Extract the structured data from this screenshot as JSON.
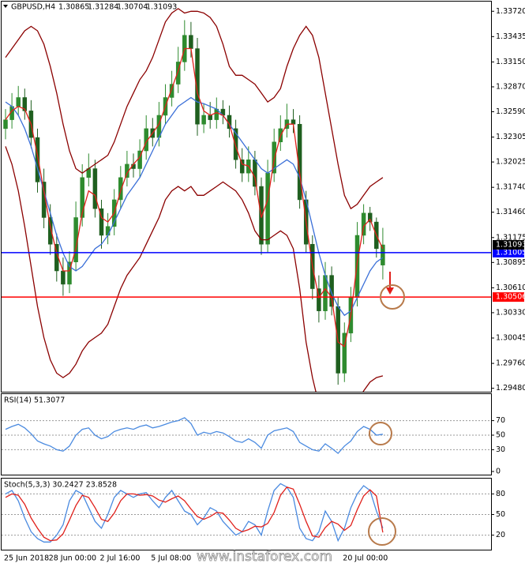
{
  "chart_data": [
    {
      "type": "candlestick",
      "title": "GBPUSD,H4",
      "header_values": [
        1.30865,
        1.31284,
        1.30704,
        1.31093
      ],
      "categories": [
        "25 Jun 2018",
        null,
        null,
        null,
        null,
        null,
        null,
        "28 Jun 00:00",
        null,
        null,
        null,
        null,
        null,
        null,
        null,
        "2 Jul 16:00",
        null,
        null,
        null,
        null,
        null,
        null,
        null,
        "5 Jul 08:00",
        null,
        null,
        null,
        null,
        null,
        null,
        null,
        null,
        null,
        null,
        null,
        null,
        null,
        null,
        null,
        null,
        null,
        null,
        null,
        null,
        null,
        null,
        null,
        null,
        null,
        null,
        null,
        null,
        null,
        "20 Jul 00:00",
        null,
        null,
        null,
        null,
        null,
        null
      ],
      "open": [
        1.324,
        1.325,
        1.3265,
        1.3275,
        1.326,
        1.323,
        1.318,
        1.314,
        1.311,
        1.308,
        1.3065,
        1.309,
        1.314,
        1.3185,
        1.3195,
        1.315,
        1.312,
        1.313,
        1.316,
        1.3185,
        1.32,
        1.3195,
        1.3215,
        1.324,
        1.323,
        1.3255,
        1.3275,
        1.329,
        1.3315,
        1.3345,
        1.333,
        1.3245,
        1.3255,
        1.325,
        1.3262,
        1.3255,
        1.324,
        1.3205,
        1.319,
        1.3205,
        1.3175,
        1.311,
        1.319,
        1.3225,
        1.324,
        1.325,
        1.3245,
        1.316,
        1.311,
        1.306,
        1.3035,
        1.3075,
        1.304,
        1.2965,
        1.301,
        1.305,
        1.312,
        1.3145,
        1.3135,
        1.30865
      ],
      "high": [
        1.3262,
        1.328,
        1.3288,
        1.3285,
        1.3272,
        1.324,
        1.3195,
        1.3155,
        1.3122,
        1.3095,
        1.3102,
        1.3158,
        1.32,
        1.3212,
        1.3205,
        1.316,
        1.3145,
        1.3172,
        1.3198,
        1.3215,
        1.3212,
        1.3228,
        1.3255,
        1.3252,
        1.327,
        1.329,
        1.3305,
        1.3332,
        1.3362,
        1.336,
        1.3342,
        1.3268,
        1.327,
        1.3275,
        1.3272,
        1.3266,
        1.325,
        1.3218,
        1.322,
        1.3215,
        1.3185,
        1.3205,
        1.324,
        1.3255,
        1.3268,
        1.3262,
        1.3255,
        1.317,
        1.312,
        1.3075,
        1.309,
        1.3085,
        1.305,
        1.3022,
        1.3062,
        1.3135,
        1.3155,
        1.3152,
        1.314,
        1.31284
      ],
      "low": [
        1.3228,
        1.324,
        1.3255,
        1.325,
        1.3218,
        1.3168,
        1.3128,
        1.3098,
        1.3068,
        1.3052,
        1.3055,
        1.308,
        1.313,
        1.3175,
        1.314,
        1.3105,
        1.311,
        1.312,
        1.315,
        1.3175,
        1.3185,
        1.3185,
        1.3205,
        1.322,
        1.322,
        1.3245,
        1.3265,
        1.328,
        1.3305,
        1.332,
        1.3232,
        1.3235,
        1.324,
        1.324,
        1.3245,
        1.323,
        1.3195,
        1.318,
        1.318,
        1.3165,
        1.3098,
        1.31,
        1.318,
        1.3215,
        1.323,
        1.3235,
        1.315,
        1.31,
        1.3048,
        1.3022,
        1.3025,
        1.303,
        1.2952,
        1.2955,
        1.3,
        1.304,
        1.311,
        1.3125,
        1.3095,
        1.30704
      ],
      "close": [
        1.325,
        1.3265,
        1.3275,
        1.326,
        1.323,
        1.318,
        1.314,
        1.311,
        1.308,
        1.3065,
        1.309,
        1.314,
        1.3185,
        1.3195,
        1.315,
        1.312,
        1.313,
        1.316,
        1.3185,
        1.32,
        1.3195,
        1.3215,
        1.324,
        1.323,
        1.3255,
        1.3275,
        1.329,
        1.3315,
        1.3345,
        1.333,
        1.3245,
        1.3255,
        1.325,
        1.3262,
        1.3255,
        1.324,
        1.3205,
        1.319,
        1.3205,
        1.3175,
        1.311,
        1.319,
        1.3225,
        1.324,
        1.325,
        1.3245,
        1.316,
        1.311,
        1.306,
        1.3035,
        1.3075,
        1.304,
        1.2965,
        1.301,
        1.305,
        1.312,
        1.3145,
        1.3135,
        1.3105,
        1.31093
      ],
      "up_color": "#2e8b2e",
      "down_color": "#1f5f1f",
      "overlays": [
        {
          "color": "#8b0000",
          "values": [
            1.332,
            1.333,
            1.334,
            1.335,
            1.3355,
            1.335,
            1.3335,
            1.331,
            1.328,
            1.3245,
            1.3215,
            1.3195,
            1.319,
            1.3195,
            1.32,
            1.3205,
            1.321,
            1.3225,
            1.3245,
            1.3265,
            1.328,
            1.3295,
            1.3305,
            1.332,
            1.334,
            1.336,
            1.337,
            1.3375,
            1.337,
            1.3372,
            1.3372,
            1.337,
            1.3365,
            1.3355,
            1.3335,
            1.331,
            1.33,
            1.33,
            1.3295,
            1.329,
            1.328,
            1.327,
            1.3275,
            1.3285,
            1.331,
            1.333,
            1.3345,
            1.3355,
            1.3345,
            1.332,
            1.328,
            1.324,
            1.32,
            1.3165,
            1.315,
            1.3155,
            1.3165,
            1.3175,
            1.318,
            1.3185
          ]
        },
        {
          "color": "#8b0000",
          "values": [
            1.322,
            1.32,
            1.317,
            1.313,
            1.3085,
            1.304,
            1.3005,
            1.298,
            1.2965,
            1.296,
            1.2965,
            1.2975,
            1.299,
            1.3,
            1.3005,
            1.301,
            1.302,
            1.304,
            1.306,
            1.3075,
            1.3085,
            1.3095,
            1.311,
            1.3125,
            1.314,
            1.316,
            1.317,
            1.3175,
            1.317,
            1.3175,
            1.3165,
            1.3165,
            1.317,
            1.3175,
            1.318,
            1.3175,
            1.317,
            1.316,
            1.3145,
            1.3125,
            1.3115,
            1.3115,
            1.312,
            1.3125,
            1.312,
            1.3105,
            1.306,
            1.3,
            1.296,
            1.293,
            1.291,
            1.288,
            1.287,
            1.2895,
            1.292,
            1.293,
            1.2945,
            1.2955,
            1.296,
            1.2962
          ]
        },
        {
          "color": "#3a6fd8",
          "values": [
            1.327,
            1.3265,
            1.3255,
            1.324,
            1.322,
            1.3195,
            1.317,
            1.3145,
            1.312,
            1.31,
            1.3085,
            1.308,
            1.3085,
            1.3095,
            1.3105,
            1.311,
            1.312,
            1.3135,
            1.315,
            1.3165,
            1.3175,
            1.3185,
            1.32,
            1.3215,
            1.323,
            1.3245,
            1.3255,
            1.3265,
            1.327,
            1.3275,
            1.327,
            1.3268,
            1.3265,
            1.3262,
            1.3255,
            1.3245,
            1.3235,
            1.3225,
            1.3215,
            1.3205,
            1.3195,
            1.319,
            1.3195,
            1.32,
            1.3205,
            1.32,
            1.3185,
            1.316,
            1.313,
            1.31,
            1.3075,
            1.3055,
            1.304,
            1.303,
            1.3035,
            1.305,
            1.3065,
            1.308,
            1.309,
            1.3095
          ]
        },
        {
          "color": "#e0201b",
          "values": [
            1.325,
            1.326,
            1.3265,
            1.3262,
            1.3245,
            1.321,
            1.317,
            1.313,
            1.31,
            1.308,
            1.308,
            1.3105,
            1.3145,
            1.317,
            1.3165,
            1.314,
            1.3135,
            1.3145,
            1.317,
            1.319,
            1.32,
            1.3208,
            1.3225,
            1.3235,
            1.3245,
            1.3265,
            1.3285,
            1.3305,
            1.333,
            1.333,
            1.328,
            1.326,
            1.3255,
            1.3258,
            1.3255,
            1.3245,
            1.322,
            1.32,
            1.3198,
            1.3185,
            1.314,
            1.316,
            1.3205,
            1.3232,
            1.3245,
            1.3245,
            1.319,
            1.3135,
            1.3085,
            1.305,
            1.306,
            1.305,
            1.3,
            1.2995,
            1.303,
            1.309,
            1.313,
            1.3138,
            1.312,
            1.3105
          ]
        }
      ],
      "levels": [
        {
          "value": 1.31005,
          "color": "#0000ff"
        },
        {
          "value": 1.30506,
          "color": "#ff0000"
        }
      ],
      "last_price": 1.31093,
      "ylim": [
        1.2945,
        1.3382
      ],
      "yticks": [
        {
          "value": 1.3372,
          "label": "1.33720"
        },
        1.33435,
        {
          "value": 1.3315,
          "label": "1.33150"
        },
        {
          "value": 1.3287,
          "label": "1.32870"
        },
        {
          "value": 1.3259,
          "label": "1.32590"
        },
        1.32305,
        1.32025,
        {
          "value": 1.3174,
          "label": "1.31740"
        },
        {
          "value": 1.3146,
          "label": "1.31460"
        },
        1.31175,
        1.30895,
        {
          "value": 1.3061,
          "label": "1.30610"
        },
        {
          "value": 1.3033,
          "label": "1.30330"
        },
        1.30045,
        {
          "value": 1.2976,
          "label": "1.29760"
        },
        {
          "value": 1.2948,
          "label": "1.29480"
        }
      ],
      "grid": false
    },
    {
      "type": "line",
      "title": "RSI(14) 51.3077",
      "series": [
        {
          "color": "#4a8ae0",
          "values": [
            58,
            62,
            65,
            60,
            52,
            42,
            38,
            35,
            30,
            28,
            35,
            50,
            58,
            60,
            50,
            45,
            48,
            55,
            58,
            60,
            58,
            62,
            64,
            60,
            62,
            65,
            68,
            70,
            74,
            66,
            50,
            54,
            52,
            55,
            53,
            48,
            42,
            40,
            45,
            40,
            32,
            50,
            56,
            58,
            60,
            55,
            40,
            35,
            30,
            28,
            38,
            32,
            25,
            35,
            42,
            55,
            62,
            58,
            50,
            51.3077
          ]
        }
      ],
      "ylim": [
        0,
        100
      ],
      "yticks": [
        70,
        50,
        30,
        0
      ],
      "grid": true
    },
    {
      "type": "line",
      "title": "Stoch(5,3,3) 30.2427 23.8528",
      "series": [
        {
          "color": "#4a8ae0",
          "values": [
            80,
            85,
            70,
            45,
            25,
            15,
            10,
            10,
            20,
            35,
            70,
            85,
            80,
            60,
            40,
            30,
            50,
            75,
            85,
            80,
            75,
            80,
            82,
            70,
            60,
            75,
            85,
            70,
            55,
            50,
            35,
            45,
            60,
            55,
            40,
            30,
            20,
            25,
            40,
            35,
            20,
            55,
            85,
            95,
            90,
            75,
            30,
            15,
            12,
            25,
            55,
            40,
            12,
            30,
            60,
            80,
            92,
            85,
            55,
            30.2427
          ]
        },
        {
          "color": "#e0201b",
          "values": [
            75,
            80,
            78,
            65,
            45,
            30,
            17,
            12,
            13,
            22,
            42,
            63,
            78,
            75,
            60,
            43,
            40,
            52,
            70,
            80,
            80,
            78,
            79,
            77,
            71,
            68,
            73,
            77,
            70,
            58,
            47,
            43,
            47,
            53,
            52,
            42,
            30,
            25,
            28,
            33,
            32,
            37,
            53,
            78,
            90,
            87,
            65,
            40,
            19,
            17,
            31,
            40,
            36,
            27,
            34,
            57,
            77,
            86,
            77,
            23.8528
          ]
        }
      ],
      "ylim": [
        0,
        100
      ],
      "yticks": [
        80,
        50,
        20
      ],
      "grid": true
    }
  ],
  "watermark": "www.instaforex.com"
}
